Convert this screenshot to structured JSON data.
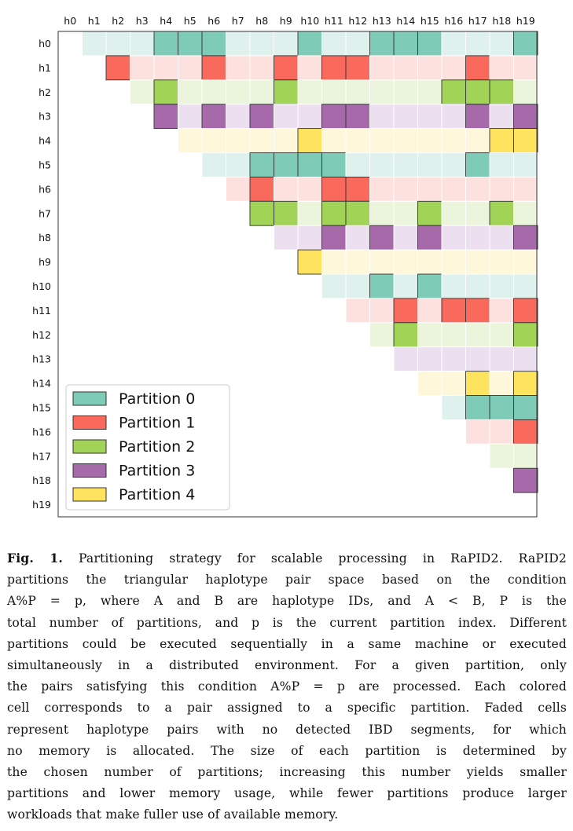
{
  "chart_data": {
    "type": "heatmap",
    "title": "",
    "row_labels": [
      "h0",
      "h1",
      "h2",
      "h3",
      "h4",
      "h5",
      "h6",
      "h7",
      "h8",
      "h9",
      "h10",
      "h11",
      "h12",
      "h13",
      "h14",
      "h15",
      "h16",
      "h17",
      "h18",
      "h19"
    ],
    "col_labels": [
      "h0",
      "h1",
      "h2",
      "h3",
      "h4",
      "h5",
      "h6",
      "h7",
      "h8",
      "h9",
      "h10",
      "h11",
      "h12",
      "h13",
      "h14",
      "h15",
      "h16",
      "h17",
      "h18",
      "h19"
    ],
    "num_partitions": 5,
    "partition_rule": "A % P = p (A = row haplotype index)",
    "partition_colors": [
      "#7ecbb7",
      "#f9695c",
      "#a0d356",
      "#a66aab",
      "#fde35e"
    ],
    "faded_colors": [
      "#dff1ec",
      "#fde1de",
      "#ebf5db",
      "#ebdff0",
      "#fef7d9"
    ],
    "legend": {
      "position": "lower-left",
      "entries": [
        "Partition 0",
        "Partition 1",
        "Partition 2",
        "Partition 3",
        "Partition 4"
      ]
    },
    "colored_pairs": [
      [
        0,
        4
      ],
      [
        0,
        5
      ],
      [
        0,
        6
      ],
      [
        0,
        10
      ],
      [
        0,
        13
      ],
      [
        0,
        14
      ],
      [
        0,
        15
      ],
      [
        0,
        19
      ],
      [
        1,
        2
      ],
      [
        1,
        6
      ],
      [
        1,
        9
      ],
      [
        1,
        11
      ],
      [
        1,
        12
      ],
      [
        1,
        17
      ],
      [
        2,
        4
      ],
      [
        2,
        9
      ],
      [
        2,
        16
      ],
      [
        2,
        17
      ],
      [
        2,
        18
      ],
      [
        3,
        4
      ],
      [
        3,
        6
      ],
      [
        3,
        8
      ],
      [
        3,
        11
      ],
      [
        3,
        12
      ],
      [
        3,
        17
      ],
      [
        3,
        19
      ],
      [
        4,
        10
      ],
      [
        4,
        18
      ],
      [
        4,
        19
      ],
      [
        5,
        8
      ],
      [
        5,
        9
      ],
      [
        5,
        10
      ],
      [
        5,
        11
      ],
      [
        5,
        17
      ],
      [
        6,
        8
      ],
      [
        6,
        11
      ],
      [
        6,
        12
      ],
      [
        7,
        8
      ],
      [
        7,
        9
      ],
      [
        7,
        11
      ],
      [
        7,
        12
      ],
      [
        7,
        15
      ],
      [
        7,
        18
      ],
      [
        8,
        11
      ],
      [
        8,
        13
      ],
      [
        8,
        15
      ],
      [
        8,
        19
      ],
      [
        9,
        10
      ],
      [
        10,
        13
      ],
      [
        10,
        15
      ],
      [
        11,
        14
      ],
      [
        11,
        16
      ],
      [
        11,
        17
      ],
      [
        11,
        19
      ],
      [
        12,
        14
      ],
      [
        12,
        19
      ],
      [
        14,
        17
      ],
      [
        14,
        19
      ],
      [
        15,
        17
      ],
      [
        15,
        18
      ],
      [
        15,
        19
      ],
      [
        16,
        19
      ],
      [
        18,
        19
      ]
    ]
  },
  "caption": {
    "label": "Fig. 1.",
    "lines": [
      "Partitioning strategy for scalable processing in RaPID2. RaPID2",
      "partitions the triangular haplotype pair space based on the condition",
      "A%P = p, where A and B are haplotype IDs, and A < B, P is the",
      "total number of partitions, and p is the current partition index. Different",
      "partitions could be executed sequentially in a same machine or executed",
      "simultaneously in a distributed environment. For a given partition, only",
      "the pairs satisfying this condition A%P = p are processed. Each colored",
      "cell corresponds to a pair assigned to a specific partition. Faded cells",
      "represent haplotype pairs with no detected IBD segments, for which",
      "no memory is allocated. The size of each partition is determined by",
      "the chosen number of partitions; increasing this number yields smaller",
      "partitions and lower memory usage, while fewer partitions produce larger",
      "workloads that make fuller use of available memory."
    ]
  }
}
